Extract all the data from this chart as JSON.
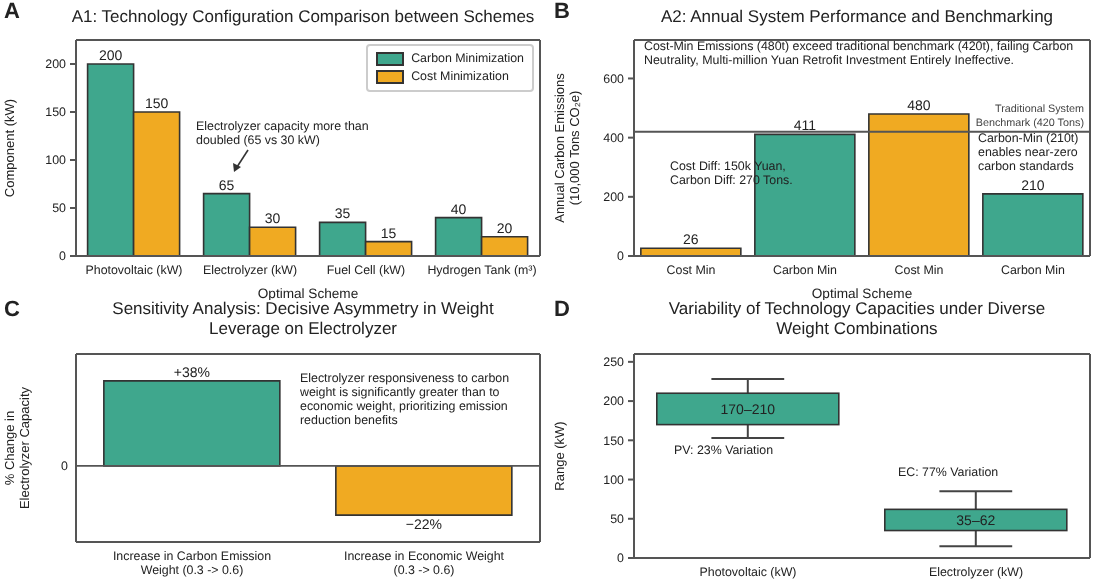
{
  "chart_data": [
    {
      "type": "bar",
      "title": "A1: Technology Configuration Comparison between Schemes",
      "xlabel": "Optimal Scheme",
      "ylabel": "Component (kW)",
      "categories": [
        "Photovoltaic (kW)",
        "Electrolyzer (kW)",
        "Fuel Cell (kW)",
        "Hydrogen Tank (m³)"
      ],
      "series": [
        {
          "name": "Carbon Minimization",
          "color": "#3fa78d",
          "values": [
            200,
            65,
            35,
            40
          ]
        },
        {
          "name": "Cost Minimization",
          "color": "#f0aa22",
          "values": [
            150,
            30,
            15,
            20
          ]
        }
      ],
      "ylim": [
        0,
        225
      ],
      "yticks": [
        0,
        50,
        100,
        150,
        200
      ],
      "data_labels": true,
      "legend": "top right",
      "annotations": [
        "A",
        "Electrolyzer capacity more than doubled (65 vs 30 kW)"
      ]
    },
    {
      "type": "bar",
      "title": "A2: Annual System Performance and Benchmarking",
      "xlabel": "Optimal Scheme",
      "ylabel": "Annual Carbon Emissions (10,000 Tons CO₂e)",
      "categories": [
        "Cost Min",
        "Carbon Min",
        "Cost Min",
        "Carbon Min"
      ],
      "values": [
        26,
        411,
        480,
        210
      ],
      "colors": [
        "#f0aa22",
        "#3fa78d",
        "#f0aa22",
        "#3fa78d"
      ],
      "ylim": [
        0,
        730
      ],
      "yticks": [
        0,
        200,
        400,
        600
      ],
      "data_labels": true,
      "ref_lines": [
        {
          "axis": "y",
          "value": 420,
          "label": "Traditional System Benchmark (420 Tons)",
          "color": "#555555"
        }
      ],
      "annotations": [
        "B",
        "Cost-Min Emissions (480t) exceed traditional benchmark (420t), failing Carbon Neutrality, Multi-million Yuan Retrofit Investment Entirely Ineffective.",
        "Cost Diff: 150k Yuan, Carbon Diff: 270 Tons.",
        "Carbon-Min (210t) enables near-zero carbon standards"
      ]
    },
    {
      "type": "bar",
      "title": "Sensitivity Analysis: Decisive Asymmetry in Weight Leverage on Electrolyzer",
      "ylabel": "% Change in Electrolyzer Capacity",
      "categories": [
        "Increase in Carbon Emission Weight (0.3 -> 0.6)",
        "Increase in Economic Weight (0.3 -> 0.6)"
      ],
      "values": [
        38,
        -22
      ],
      "colors": [
        "#3fa78d",
        "#f0aa22"
      ],
      "value_labels": [
        "+38%",
        "−22%"
      ],
      "ref_lines": [
        {
          "axis": "y",
          "value": 0,
          "label": "0",
          "color": "#555555"
        }
      ],
      "annotations": [
        "C",
        "Electrolyzer responsiveness to carbon weight is significantly greater than to economic weight, prioritizing emission reduction benefits"
      ]
    },
    {
      "type": "bar",
      "title": "Variability of Technology Capacities under Diverse Weight Combinations",
      "ylabel": "Range (kW)",
      "categories": [
        "Photovoltaic (kW)",
        "Electrolyzer (kW)"
      ],
      "base": [
        170,
        35
      ],
      "values": [
        40,
        27
      ],
      "color": "#3fa78d",
      "value_labels": [
        "170–210",
        "35–62"
      ],
      "errors": [
        [
          153,
          228
        ],
        [
          15,
          85
        ]
      ],
      "ylim": [
        0,
        260
      ],
      "yticks": [
        0,
        50,
        100,
        150,
        200,
        250
      ],
      "annotations": [
        "D",
        "PV: 23% Variation",
        "EC: 77% Variation"
      ]
    }
  ]
}
